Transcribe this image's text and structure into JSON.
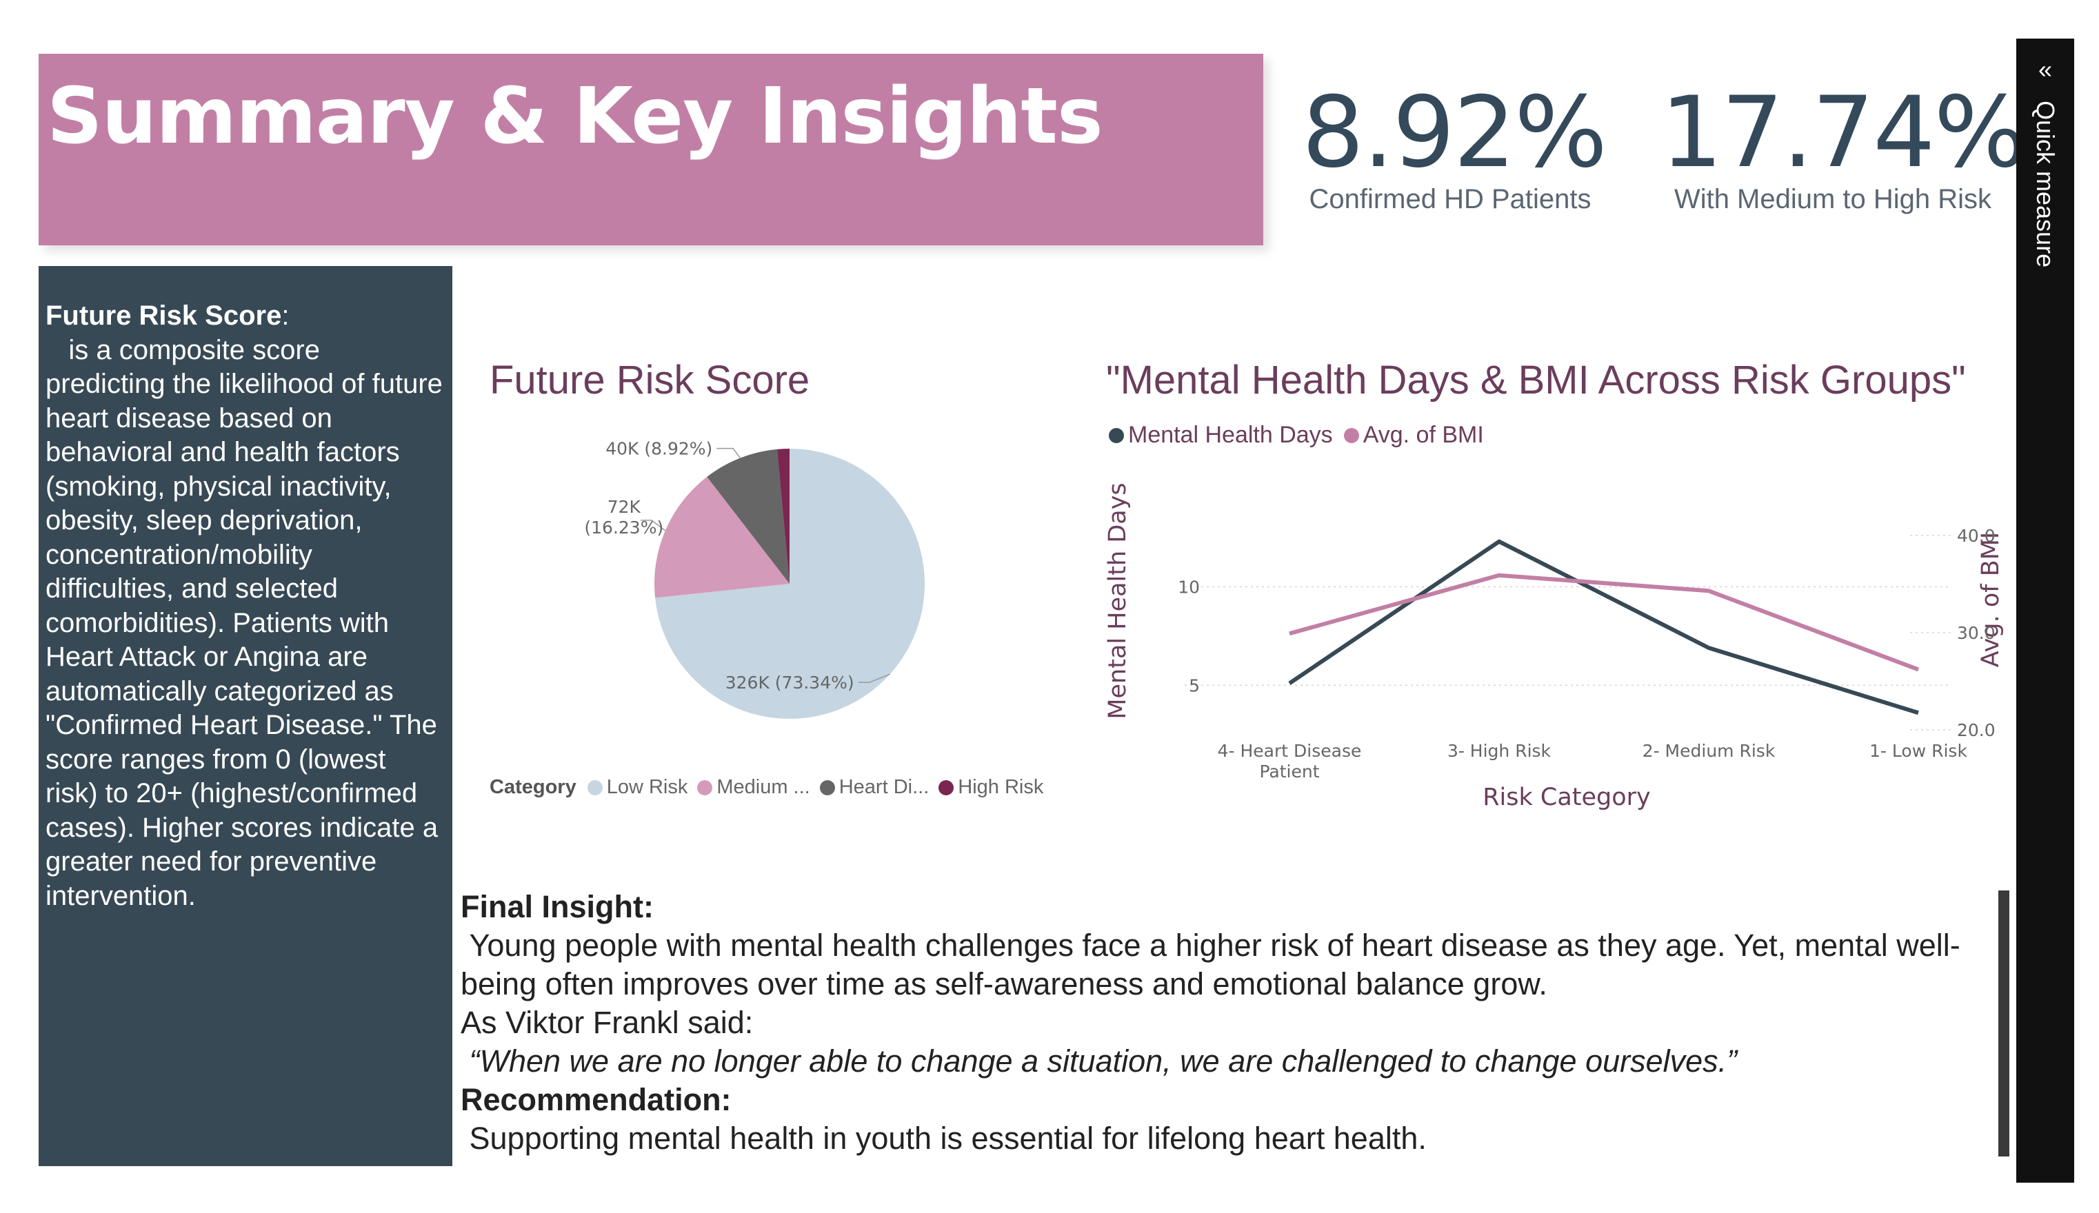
{
  "header": {
    "title": "Summary & Key Insights"
  },
  "kpis": [
    {
      "value": "8.92%",
      "label": "Confirmed HD Patients"
    },
    {
      "value": "17.74%",
      "label": "With Medium to High Risk"
    }
  ],
  "description": {
    "term": "Future Risk Score",
    "colon": ":",
    "text": "is a composite score predicting the likelihood of future heart disease based on behavioral and health factors (smoking, physical inactivity, obesity, sleep deprivation, concentration/mobility difficulties, and selected comorbidities). Patients with Heart Attack or Angina are automatically categorized as \"Confirmed Heart Disease.\" The score ranges from 0 (lowest risk) to 20+ (highest/confirmed cases). Higher scores indicate a greater need for preventive intervention."
  },
  "chart_data": [
    {
      "type": "pie",
      "title": "Future Risk Score",
      "legend_title": "Category",
      "slices": [
        {
          "name": "Low Risk",
          "legend_label": "Low Risk",
          "value": 326,
          "label": "326K (73.34%)",
          "color": "#c5d5e1"
        },
        {
          "name": "Medium Risk",
          "legend_label": "Medium ...",
          "value": 72,
          "label_line1": "72K",
          "label_line2": "(16.23%)",
          "color": "#d49ab9"
        },
        {
          "name": "Heart Disease Patient",
          "legend_label": "Heart Di...",
          "value": 40,
          "label": "40K (8.92%)",
          "color": "#666666"
        },
        {
          "name": "High Risk",
          "legend_label": "High Risk",
          "value": 6.5,
          "color": "#7a2650"
        }
      ]
    },
    {
      "type": "line",
      "title": "\"Mental Health Days & BMI Across Risk Groups\"",
      "categories": [
        "4- Heart Disease Patient",
        "3- High Risk",
        "2- Medium Risk",
        "1- Low Risk"
      ],
      "category_lines": [
        [
          "4- Heart Disease",
          "Patient"
        ],
        [
          "3- High Risk"
        ],
        [
          "2- Medium Risk"
        ],
        [
          "1- Low Risk"
        ]
      ],
      "xlabel": "Risk Category",
      "series": [
        {
          "name": "Mental Health Days",
          "axis": "left",
          "values": [
            5.1,
            12.3,
            6.9,
            3.6
          ],
          "color": "#374955"
        },
        {
          "name": "Avg. of BMI",
          "axis": "right",
          "values": [
            29.9,
            35.9,
            34.3,
            26.2
          ],
          "color": "#c27fa5"
        }
      ],
      "y_left": {
        "label": "Mental Health Days",
        "ticks": [
          5,
          10
        ],
        "range": [
          2,
          13.2
        ]
      },
      "y_right": {
        "label": "Avg. of BMI",
        "ticks": [
          "20.0",
          "30.0",
          "40.0"
        ],
        "tick_values": [
          20,
          30,
          40
        ],
        "range": [
          18.5,
          41.2
        ]
      }
    }
  ],
  "insights": {
    "final_heading": "Final Insight:",
    "final_text": "Young people with mental health challenges face a higher risk of heart disease as they age. Yet, mental well-being often improves over time as self-awareness and emotional balance grow.",
    "attribution": "As Viktor Frankl said:",
    "quote": "“When we are no longer able to change a situation, we are challenged to change ourselves.”",
    "rec_heading": "Recommendation:",
    "rec_text": "Supporting mental health in youth is essential for lifelong heart health."
  },
  "quick_measure": {
    "chevron": "«",
    "label": "Quick measure"
  }
}
